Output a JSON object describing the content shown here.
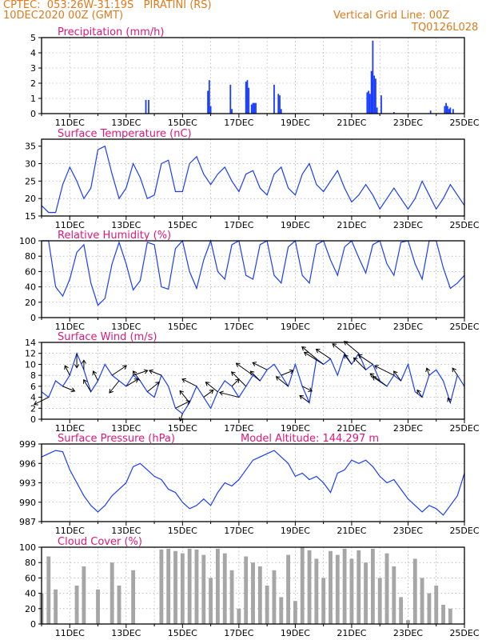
{
  "header": {
    "station": "CPTEC:  053:26W-31:19S   PIRATINI (RS)",
    "run": "10DEC2020 00Z (GMT)",
    "gridline": "Vertical Grid Line: 00Z",
    "model": "TQ0126L028"
  },
  "accent_color": "#e07a1b",
  "title_color": "#e0177a",
  "line_color": "#1a3dff",
  "cloud_color": "#a6a6a6",
  "chart_data": [
    {
      "type": "bar",
      "title": "Precipitation (mm/h)",
      "ylim": [
        0,
        5
      ],
      "yticks": [
        "0",
        "1",
        "2",
        "3",
        "4",
        "5"
      ],
      "xticks": [
        "11DEC",
        "13DEC",
        "15DEC",
        "17DEC",
        "19DEC",
        "21DEC",
        "23DEC",
        "25DEC"
      ],
      "x": [
        3.7,
        3.8,
        5.9,
        5.95,
        6.0,
        6.7,
        6.75,
        7.25,
        7.3,
        7.35,
        7.45,
        7.5,
        7.55,
        7.6,
        8.25,
        8.4,
        8.45,
        8.5,
        11.55,
        11.6,
        11.65,
        11.7,
        11.75,
        11.8,
        11.85,
        11.9,
        12.05,
        12.5,
        13.8,
        14.3,
        14.35,
        14.4,
        14.45,
        14.5,
        14.6
      ],
      "values": [
        0.9,
        0.9,
        1.5,
        2.2,
        0.5,
        1.9,
        0.3,
        2.1,
        2.2,
        1.7,
        0.6,
        0.7,
        0.7,
        0.7,
        1.9,
        1.3,
        1.2,
        0.3,
        1.4,
        1.5,
        1.3,
        2.8,
        4.8,
        2.5,
        2.3,
        0.4,
        1.2,
        0.1,
        0.2,
        0.5,
        0.7,
        0.5,
        0.3,
        0.4,
        0.3
      ]
    },
    {
      "type": "line",
      "title": "Surface Temperature (nC)",
      "ylim": [
        15,
        37
      ],
      "yticks": [
        "15",
        "20",
        "25",
        "30",
        "35"
      ],
      "xticks": [
        "11DEC",
        "13DEC",
        "15DEC",
        "17DEC",
        "19DEC",
        "21DEC",
        "23DEC",
        "25DEC"
      ],
      "x": [
        0.0,
        0.25,
        0.5,
        0.75,
        1.0,
        1.25,
        1.5,
        1.75,
        2.0,
        2.25,
        2.5,
        2.75,
        3.0,
        3.25,
        3.5,
        3.75,
        4.0,
        4.25,
        4.5,
        4.75,
        5.0,
        5.25,
        5.5,
        5.75,
        6.0,
        6.25,
        6.5,
        6.75,
        7.0,
        7.25,
        7.5,
        7.75,
        8.0,
        8.25,
        8.5,
        8.75,
        9.0,
        9.25,
        9.5,
        9.75,
        10.0,
        10.25,
        10.5,
        10.75,
        11.0,
        11.25,
        11.5,
        11.75,
        12.0,
        12.25,
        12.5,
        12.75,
        13.0,
        13.25,
        13.5,
        13.75,
        14.0,
        14.25,
        14.5,
        14.75,
        15.0
      ],
      "values": [
        18,
        16,
        16,
        24,
        29,
        25,
        20,
        23,
        34,
        35,
        27,
        20,
        23,
        30,
        26,
        20,
        21,
        30,
        31,
        22,
        22,
        30,
        32,
        27,
        24,
        27,
        29,
        25,
        22,
        27,
        28,
        23,
        21,
        27,
        29,
        23,
        21,
        27,
        30,
        24,
        22,
        25,
        28,
        23,
        19,
        21,
        24,
        21,
        17,
        20,
        23,
        20,
        17,
        20,
        25,
        21,
        17,
        20,
        24,
        21,
        18
      ]
    },
    {
      "type": "line",
      "title": "Relative Humidity (%)",
      "ylim": [
        0,
        100
      ],
      "yticks": [
        "0",
        "20",
        "40",
        "60",
        "80",
        "100"
      ],
      "xticks": [
        "11DEC",
        "13DEC",
        "15DEC",
        "17DEC",
        "19DEC",
        "21DEC",
        "23DEC",
        "25DEC"
      ],
      "x": [
        0.0,
        0.25,
        0.5,
        0.75,
        1.0,
        1.25,
        1.5,
        1.75,
        2.0,
        2.25,
        2.5,
        2.75,
        3.0,
        3.25,
        3.5,
        3.75,
        4.0,
        4.25,
        4.5,
        4.75,
        5.0,
        5.25,
        5.5,
        5.75,
        6.0,
        6.25,
        6.5,
        6.75,
        7.0,
        7.25,
        7.5,
        7.75,
        8.0,
        8.25,
        8.5,
        8.75,
        9.0,
        9.25,
        9.5,
        9.75,
        10.0,
        10.25,
        10.5,
        10.75,
        11.0,
        11.25,
        11.5,
        11.75,
        12.0,
        12.25,
        12.5,
        12.75,
        13.0,
        13.25,
        13.5,
        13.75,
        14.0,
        14.25,
        14.5,
        14.75,
        15.0
      ],
      "values": [
        100,
        100,
        40,
        28,
        50,
        85,
        95,
        45,
        16,
        25,
        70,
        98,
        70,
        36,
        48,
        98,
        95,
        40,
        37,
        90,
        100,
        60,
        38,
        75,
        100,
        60,
        50,
        95,
        100,
        55,
        50,
        95,
        100,
        55,
        45,
        92,
        100,
        55,
        45,
        95,
        100,
        75,
        55,
        92,
        100,
        78,
        58,
        95,
        100,
        70,
        55,
        98,
        100,
        70,
        50,
        100,
        100,
        65,
        38,
        45,
        55
      ]
    },
    {
      "type": "line",
      "title": "Surface Wind (m/s)",
      "ylim": [
        0,
        14
      ],
      "yticks": [
        "0",
        "2",
        "4",
        "6",
        "8",
        "10",
        "12",
        "14"
      ],
      "xticks": [
        "11DEC",
        "13DEC",
        "15DEC",
        "17DEC",
        "19DEC",
        "21DEC",
        "23DEC",
        "25DEC"
      ],
      "x": [
        0.0,
        0.25,
        0.5,
        0.75,
        1.0,
        1.25,
        1.5,
        1.75,
        2.0,
        2.25,
        2.5,
        2.75,
        3.0,
        3.25,
        3.5,
        3.75,
        4.0,
        4.25,
        4.5,
        4.75,
        5.0,
        5.25,
        5.5,
        5.75,
        6.0,
        6.25,
        6.5,
        6.75,
        7.0,
        7.25,
        7.5,
        7.75,
        8.0,
        8.25,
        8.5,
        8.75,
        9.0,
        9.25,
        9.5,
        9.75,
        10.0,
        10.25,
        10.5,
        10.75,
        11.0,
        11.25,
        11.5,
        11.75,
        12.0,
        12.25,
        12.5,
        12.75,
        13.0,
        13.25,
        13.5,
        13.75,
        14.0,
        14.25,
        14.5,
        14.75,
        15.0
      ],
      "values": [
        5,
        4,
        7,
        6,
        8,
        12,
        9,
        5,
        7,
        10,
        8,
        7,
        6,
        8,
        7,
        5,
        4,
        8,
        6,
        2,
        1,
        3,
        6,
        4,
        2,
        5,
        7,
        6,
        4,
        6,
        8,
        7,
        9,
        10,
        8,
        6,
        10,
        6,
        3,
        11,
        10,
        11,
        8,
        12,
        10,
        12,
        9,
        10,
        7,
        6,
        8,
        7,
        10,
        5,
        4,
        8,
        9,
        7,
        3,
        8,
        6
      ]
    },
    {
      "type": "line",
      "title": "Surface Pressure (hPa)",
      "annotation": "Model Altitude: 144.297 m",
      "ylim": [
        987,
        999
      ],
      "yticks": [
        "987",
        "990",
        "993",
        "996",
        "999"
      ],
      "xticks": [
        "11DEC",
        "13DEC",
        "15DEC",
        "17DEC",
        "19DEC",
        "21DEC",
        "23DEC",
        "25DEC"
      ],
      "x": [
        0.0,
        0.25,
        0.5,
        0.75,
        1.0,
        1.25,
        1.5,
        1.75,
        2.0,
        2.25,
        2.5,
        2.75,
        3.0,
        3.25,
        3.5,
        3.75,
        4.0,
        4.25,
        4.5,
        4.75,
        5.0,
        5.25,
        5.5,
        5.75,
        6.0,
        6.25,
        6.5,
        6.75,
        7.0,
        7.25,
        7.5,
        7.75,
        8.0,
        8.25,
        8.5,
        8.75,
        9.0,
        9.25,
        9.5,
        9.75,
        10.0,
        10.25,
        10.5,
        10.75,
        11.0,
        11.25,
        11.5,
        11.75,
        12.0,
        12.25,
        12.5,
        12.75,
        13.0,
        13.25,
        13.5,
        13.75,
        14.0,
        14.25,
        14.5,
        14.75,
        15.0
      ],
      "values": [
        997,
        997.5,
        998,
        997.8,
        995,
        993,
        991,
        989.5,
        988.5,
        989.5,
        991,
        992,
        993,
        995.5,
        996,
        995,
        994,
        993.5,
        992,
        991.5,
        990,
        989,
        989.5,
        990.5,
        989.5,
        991.5,
        993,
        992.5,
        993.5,
        995,
        996.5,
        997,
        997.5,
        998,
        997,
        996,
        994,
        994.5,
        993.5,
        994,
        993,
        991.5,
        994.5,
        995,
        996.5,
        996,
        996.5,
        995.5,
        994,
        993,
        993.5,
        992,
        990.5,
        989.5,
        988.5,
        989.5,
        989,
        988,
        989.5,
        991,
        994.5
      ]
    },
    {
      "type": "area",
      "title": "Cloud Cover (%)",
      "ylim": [
        0,
        100
      ],
      "yticks": [
        "0",
        "20",
        "40",
        "60",
        "80",
        "100"
      ],
      "xticks": [
        "11DEC",
        "13DEC",
        "15DEC",
        "17DEC",
        "19DEC",
        "21DEC",
        "23DEC",
        "25DEC"
      ],
      "x": [
        0.0,
        0.25,
        0.5,
        0.75,
        1.0,
        1.25,
        1.5,
        1.75,
        2.0,
        2.25,
        2.5,
        2.75,
        3.0,
        3.25,
        3.5,
        3.75,
        4.0,
        4.25,
        4.5,
        4.75,
        5.0,
        5.25,
        5.5,
        5.75,
        6.0,
        6.25,
        6.5,
        6.75,
        7.0,
        7.25,
        7.5,
        7.75,
        8.0,
        8.25,
        8.5,
        8.75,
        9.0,
        9.25,
        9.5,
        9.75,
        10.0,
        10.25,
        10.5,
        10.75,
        11.0,
        11.25,
        11.5,
        11.75,
        12.0,
        12.25,
        12.5,
        12.75,
        13.0,
        13.25,
        13.5,
        13.75,
        14.0,
        14.25,
        14.5,
        14.75,
        15.0
      ],
      "values": [
        40,
        88,
        45,
        0,
        0,
        50,
        75,
        0,
        45,
        0,
        80,
        50,
        0,
        70,
        0,
        0,
        0,
        97,
        98,
        95,
        92,
        98,
        97,
        90,
        60,
        98,
        92,
        70,
        20,
        88,
        80,
        75,
        50,
        70,
        35,
        90,
        30,
        100,
        96,
        85,
        60,
        95,
        90,
        98,
        85,
        96,
        80,
        98,
        60,
        92,
        75,
        35,
        5,
        85,
        60,
        40,
        50,
        25,
        20,
        0,
        0
      ]
    }
  ],
  "wind_vectors": {
    "x": [
      0.25,
      0.75,
      1.0,
      1.25,
      1.5,
      1.75,
      2.0,
      2.5,
      2.75,
      3.0,
      3.25,
      3.5,
      3.75,
      4.25,
      4.75,
      5.0,
      5.25,
      5.5,
      5.75,
      6.25,
      6.75,
      7.0,
      7.25,
      7.5,
      7.75,
      8.0,
      8.5,
      8.75,
      9.25,
      9.5,
      9.75,
      10.0,
      10.25,
      10.75,
      11.0,
      11.25,
      11.5,
      11.75,
      12.0,
      12.25,
      12.5,
      12.75,
      13.5,
      13.75,
      14.5,
      14.75
    ],
    "u": [
      -6,
      5,
      -2,
      0,
      0,
      -3,
      -2,
      6,
      -4,
      5,
      6,
      -3,
      5,
      -5,
      6,
      -1,
      -4,
      -6,
      4,
      -5,
      3,
      -8,
      -6,
      -7,
      -4,
      -6,
      5,
      -5,
      4,
      -4,
      -6,
      -8,
      -6,
      -5,
      -3,
      -6,
      -5,
      -6,
      -4,
      -6,
      -8,
      -3,
      -2,
      -1,
      -1,
      -2
    ],
    "v": [
      -3,
      -2,
      4,
      -6,
      4,
      5,
      4,
      4,
      -5,
      3,
      2,
      4,
      4,
      2,
      3,
      -3,
      5,
      3,
      3,
      4,
      3,
      2,
      6,
      5,
      4,
      3,
      2,
      4,
      -2,
      3,
      5,
      5,
      4,
      4,
      4,
      5,
      5,
      4,
      3,
      4,
      4,
      4,
      3,
      3,
      2,
      3
    ]
  }
}
